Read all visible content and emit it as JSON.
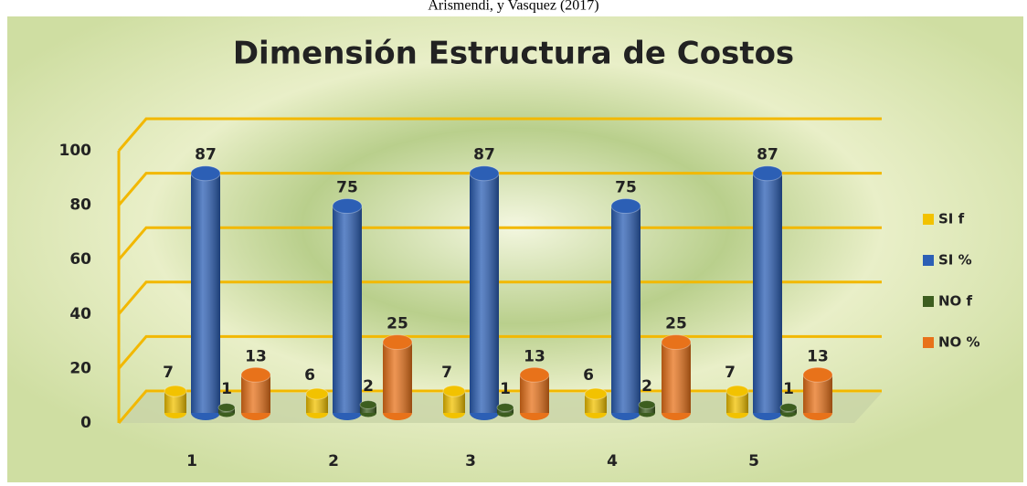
{
  "source": "Arismendi, y Vasquez (2017)",
  "chart_data": {
    "type": "bar3d",
    "title": "Dimensión Estructura de Costos",
    "categories": [
      "1",
      "2",
      "3",
      "4",
      "5"
    ],
    "series": [
      {
        "name": "SI f",
        "color": "#f2c200",
        "values": [
          7,
          6,
          7,
          6,
          7
        ]
      },
      {
        "name": "SI %",
        "color": "#2c5fb5",
        "values": [
          87,
          75,
          87,
          75,
          87
        ]
      },
      {
        "name": "NO f",
        "color": "#3d5e1f",
        "values": [
          1,
          2,
          1,
          2,
          1
        ]
      },
      {
        "name": "NO %",
        "color": "#e8721a",
        "values": [
          13,
          25,
          13,
          25,
          13
        ]
      }
    ],
    "ylim": [
      0,
      100
    ],
    "yticks": [
      0,
      20,
      40,
      60,
      80,
      100
    ],
    "grid": true,
    "legend": "right"
  }
}
